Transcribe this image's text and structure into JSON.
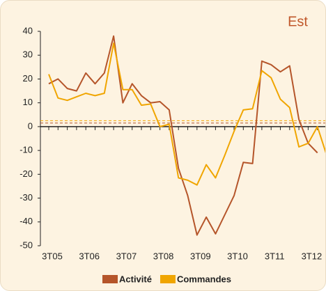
{
  "chart_data": {
    "type": "line",
    "title": "Est",
    "categories": [
      "3T05",
      null,
      null,
      null,
      "3T06",
      null,
      null,
      null,
      "3T07",
      null,
      null,
      null,
      "3T08",
      null,
      null,
      null,
      "3T09",
      null,
      null,
      null,
      "3T10",
      null,
      null,
      null,
      "3T11",
      null,
      null,
      null,
      "3T12",
      null,
      null
    ],
    "series": [
      {
        "name": "Activité",
        "color": "#b5552a",
        "values": [
          18,
          20,
          16,
          15,
          22.5,
          18,
          22.5,
          38,
          10,
          18,
          13,
          10,
          10.5,
          7,
          -17.5,
          -29,
          -45.5,
          -38,
          -45,
          -37,
          -29,
          -15,
          -15.5,
          27.5,
          26,
          23,
          25.5,
          3,
          -7,
          -11,
          null
        ]
      },
      {
        "name": "Commandes",
        "color": "#f0a500",
        "values": [
          22,
          12,
          11,
          12.5,
          14,
          13,
          14,
          35,
          15.5,
          15.5,
          9,
          9.5,
          0,
          1,
          -21.5,
          -22.5,
          -24.5,
          -16,
          -21.5,
          -12,
          -2,
          7,
          7.5,
          23.5,
          20.5,
          11.5,
          8,
          -8.5,
          -7,
          0,
          -12
        ]
      }
    ],
    "reference_lines": [
      {
        "value": 2.5,
        "color": "#f0a500"
      },
      {
        "value": 1.5,
        "color": "#b5552a"
      }
    ],
    "ylim": [
      -50,
      40
    ],
    "yticks": [
      -50,
      -40,
      -30,
      -20,
      -10,
      0,
      10,
      20,
      30,
      40
    ],
    "legend": "bottom"
  }
}
